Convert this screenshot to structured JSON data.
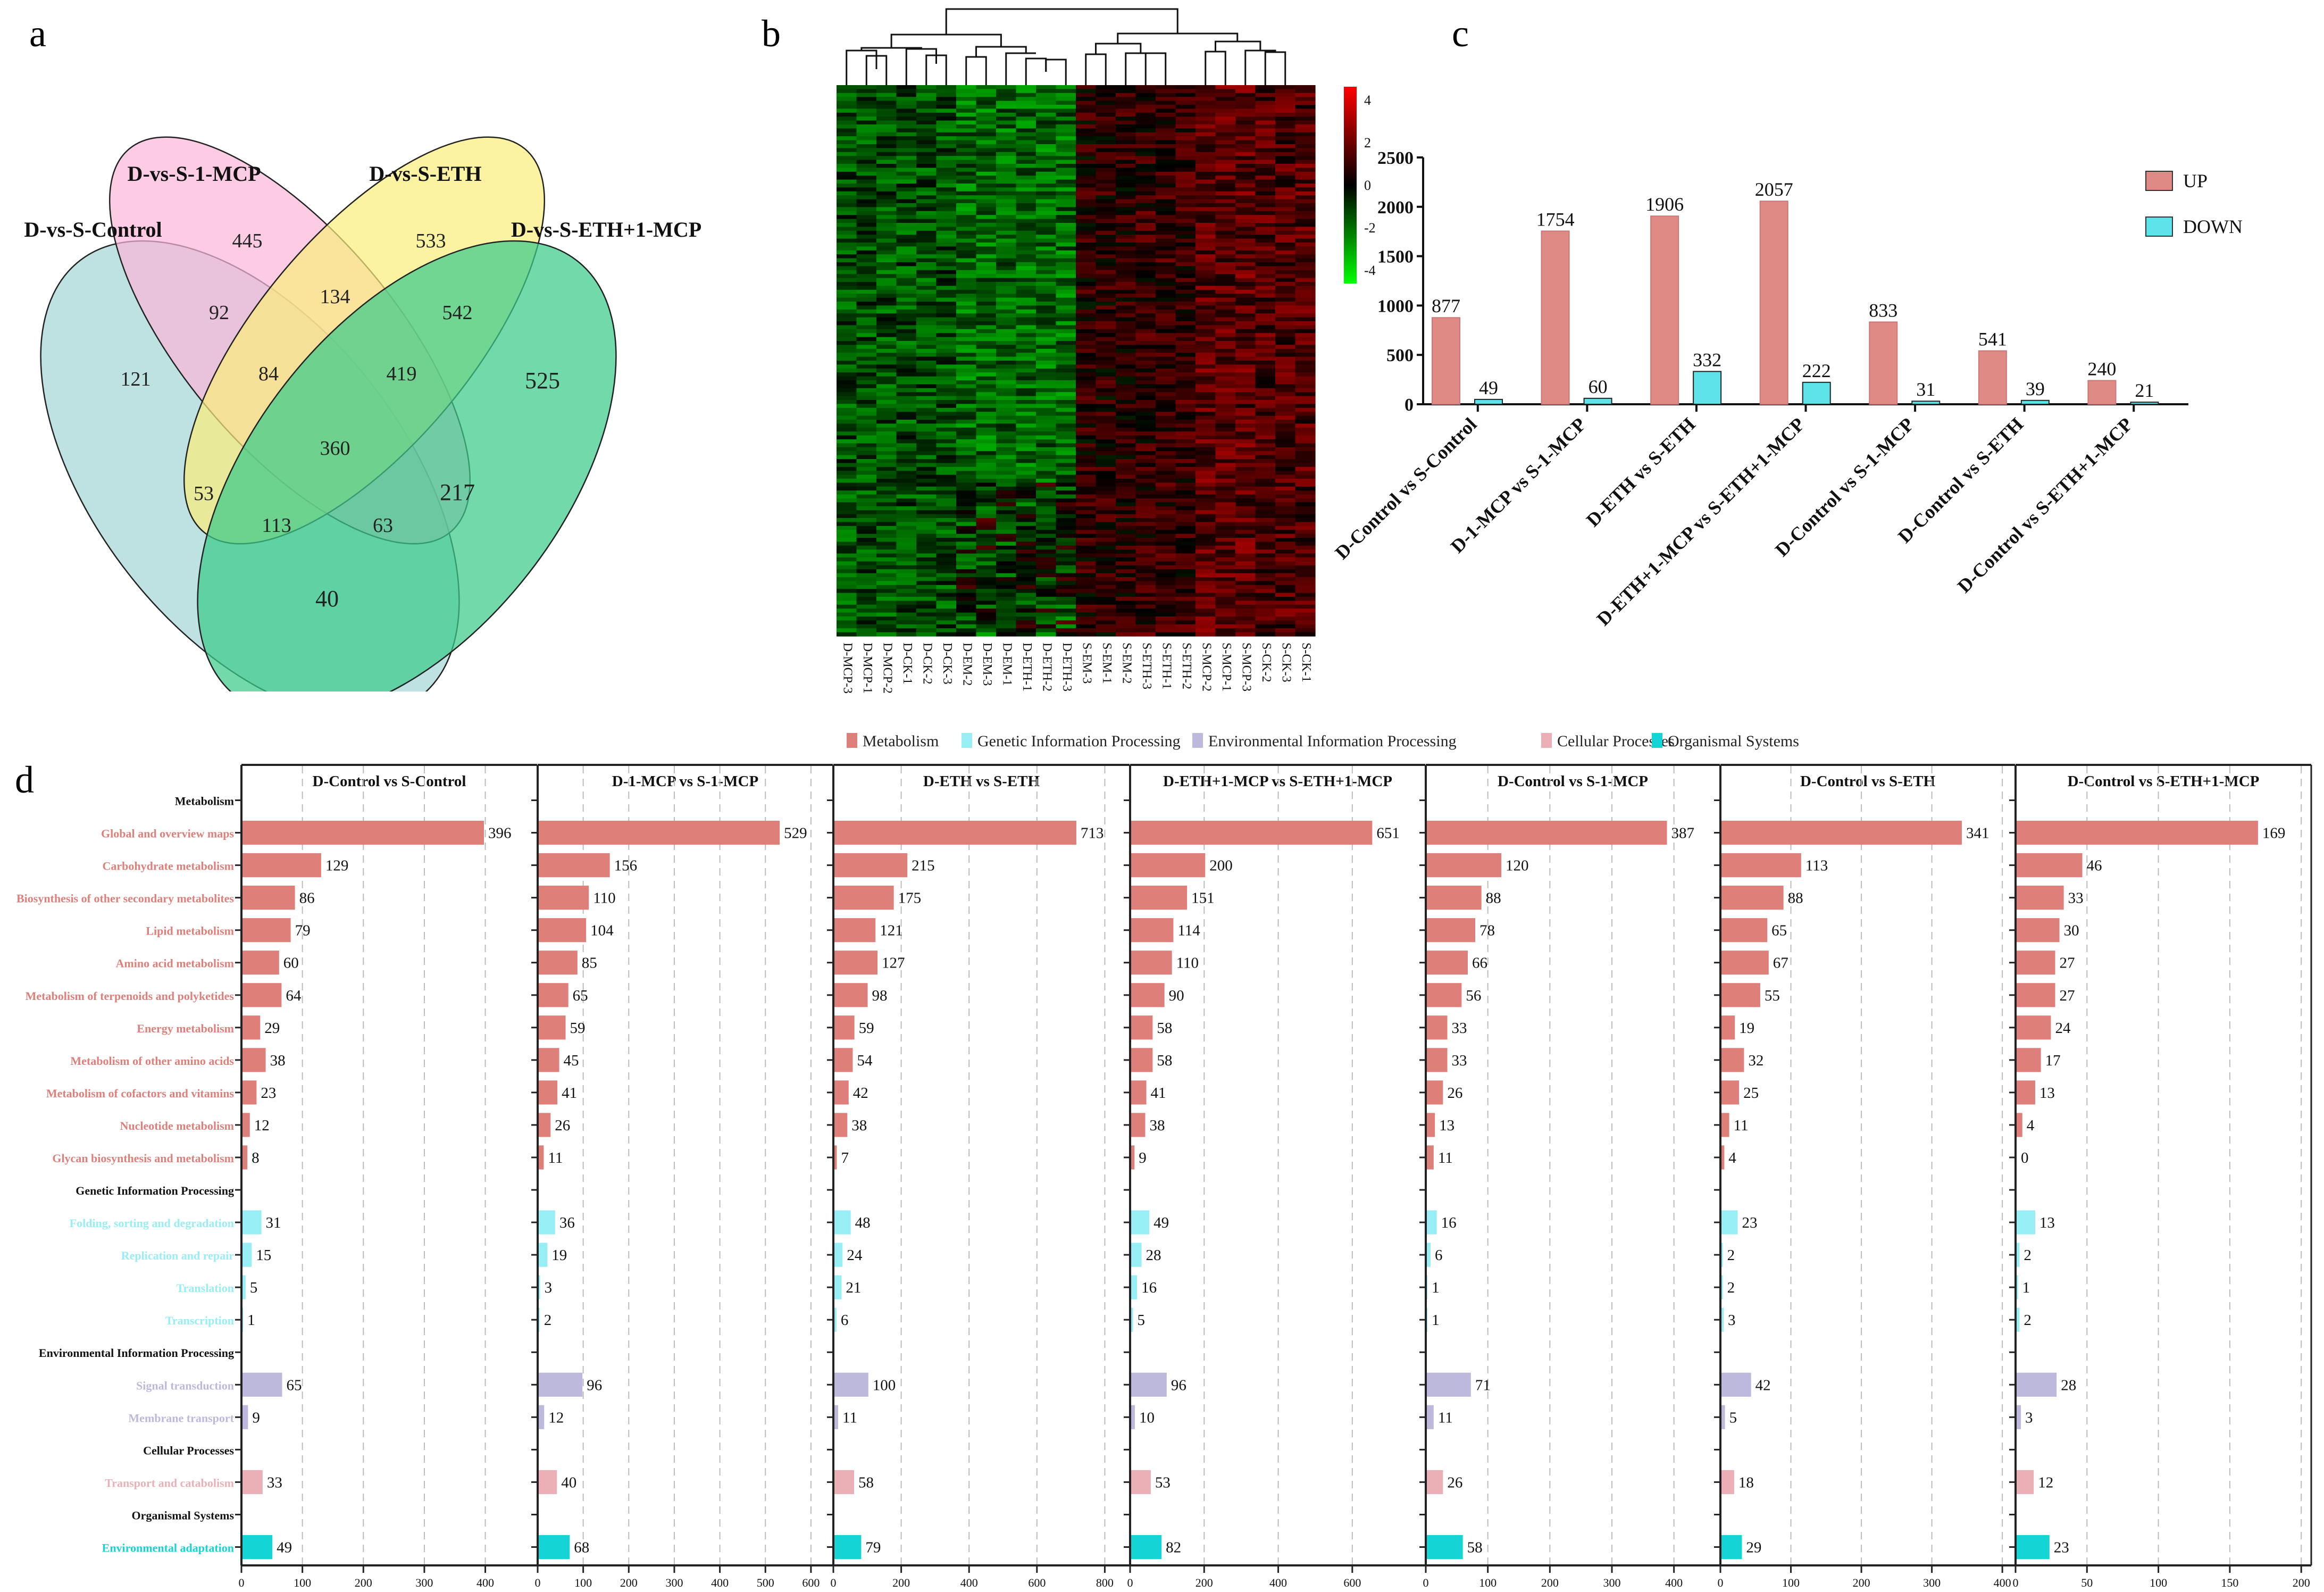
{
  "panel_letters": {
    "a": "a",
    "b": "b",
    "c": "c",
    "d": "d"
  },
  "chart_data": [
    {
      "type": "venn",
      "panel": "a",
      "sets": [
        {
          "name": "D-vs-S-Control",
          "color": "#a8d8d8"
        },
        {
          "name": "D-vs-S-1-MCP",
          "color": "#f9b6d8"
        },
        {
          "name": "D-vs-S-ETH",
          "color": "#f9ec7a"
        },
        {
          "name": "D-vs-S-ETH+1-MCP",
          "color": "#3ccb8a"
        }
      ],
      "regions": [
        {
          "label": "121",
          "sets": [
            "D-vs-S-Control"
          ]
        },
        {
          "label": "445",
          "sets": [
            "D-vs-S-1-MCP"
          ]
        },
        {
          "label": "533",
          "sets": [
            "D-vs-S-ETH"
          ]
        },
        {
          "label": "525",
          "sets": [
            "D-vs-S-ETH+1-MCP"
          ]
        },
        {
          "label": "92",
          "sets": [
            "D-vs-S-Control",
            "D-vs-S-1-MCP"
          ]
        },
        {
          "label": "134",
          "sets": [
            "D-vs-S-1-MCP",
            "D-vs-S-ETH"
          ]
        },
        {
          "label": "542",
          "sets": [
            "D-vs-S-ETH",
            "D-vs-S-ETH+1-MCP"
          ]
        },
        {
          "label": "84",
          "sets": [
            "D-vs-S-Control",
            "D-vs-S-1-MCP",
            "D-vs-S-ETH"
          ]
        },
        {
          "label": "419",
          "sets": [
            "D-vs-S-1-MCP",
            "D-vs-S-ETH",
            "D-vs-S-ETH+1-MCP"
          ]
        },
        {
          "label": "360",
          "sets": [
            "D-vs-S-Control",
            "D-vs-S-1-MCP",
            "D-vs-S-ETH",
            "D-vs-S-ETH+1-MCP"
          ]
        },
        {
          "label": "53",
          "sets": [
            "D-vs-S-Control",
            "D-vs-S-ETH"
          ]
        },
        {
          "label": "217",
          "sets": [
            "D-vs-S-1-MCP",
            "D-vs-S-ETH+1-MCP"
          ]
        },
        {
          "label": "113",
          "sets": [
            "D-vs-S-Control",
            "D-vs-S-ETH",
            "D-vs-S-ETH+1-MCP"
          ]
        },
        {
          "label": "63",
          "sets": [
            "D-vs-S-Control",
            "D-vs-S-1-MCP",
            "D-vs-S-ETH+1-MCP"
          ]
        },
        {
          "label": "40",
          "sets": [
            "D-vs-S-Control",
            "D-vs-S-ETH+1-MCP"
          ]
        }
      ]
    },
    {
      "type": "heatmap",
      "panel": "b",
      "columns": [
        "D-MCP-3",
        "D-MCP-1",
        "D-MCP-2",
        "D-CK-1",
        "D-CK-2",
        "D-CK-3",
        "D-EM-2",
        "D-EM-3",
        "D-EM-1",
        "D-ETH-1",
        "D-ETH-2",
        "D-ETH-3",
        "S-EM-3",
        "S-EM-1",
        "S-EM-2",
        "S-ETH-3",
        "S-ETH-1",
        "S-ETH-2",
        "S-MCP-2",
        "S-MCP-1",
        "S-MCP-3",
        "S-CK-2",
        "S-CK-3",
        "S-CK-1"
      ],
      "colorbar": {
        "ticks": [
          "4",
          "2",
          "0",
          "-2",
          "-4"
        ],
        "range": [
          -4,
          4
        ],
        "high_color": "#ff0000",
        "mid_color": "#000000",
        "low_color": "#00ff00"
      },
      "column_cluster_means": [
        -1.2,
        -1.2,
        -1.2,
        -1.2,
        -1.2,
        -1.2,
        -1.6,
        -1.6,
        -1.6,
        -1.6,
        -1.6,
        -1.6,
        0.6,
        0.6,
        0.6,
        0.8,
        0.8,
        0.8,
        1.4,
        1.4,
        1.4,
        1.2,
        1.2,
        1.2
      ]
    },
    {
      "type": "bar",
      "panel": "c",
      "categories": [
        "D-Control vs S-Control",
        "D-1-MCP vs S-1-MCP",
        "D-ETH vs S-ETH",
        "D-ETH+1-MCP vs S-ETH+1-MCP",
        "D-Control vs S-1-MCP",
        "D-Control vs S-ETH",
        "D-Control vs S-ETH+1-MCP"
      ],
      "series": [
        {
          "name": "UP",
          "color": "#e08a86",
          "values": [
            877,
            1754,
            1906,
            2057,
            833,
            541,
            240
          ]
        },
        {
          "name": "DOWN",
          "color": "#5fe3ea",
          "values": [
            49,
            60,
            332,
            222,
            31,
            39,
            21
          ]
        }
      ],
      "yticks": [
        "0",
        "500",
        "1000",
        "1500",
        "2000",
        "2500"
      ],
      "ylim": [
        0,
        2500
      ],
      "xlabel": "",
      "ylabel": "",
      "legend_position": "top-right"
    },
    {
      "type": "bar",
      "orientation": "horizontal",
      "panel": "d",
      "legend": [
        {
          "name": "Metabolism",
          "color": "#df7f7a"
        },
        {
          "name": "Genetic Information Processing",
          "color": "#97eef4"
        },
        {
          "name": "Environmental Information Processing",
          "color": "#bdb9dc"
        },
        {
          "name": "Cellular Processes",
          "color": "#eab0b5"
        },
        {
          "name": "Organismal Systems",
          "color": "#14d4d6"
        }
      ],
      "categories": [
        {
          "label": "Metabolism",
          "group": "header"
        },
        {
          "label": "Global and overview maps",
          "group": "Metabolism"
        },
        {
          "label": "Carbohydrate metabolism",
          "group": "Metabolism"
        },
        {
          "label": "Biosynthesis of other secondary metabolites",
          "group": "Metabolism"
        },
        {
          "label": "Lipid metabolism",
          "group": "Metabolism"
        },
        {
          "label": "Amino acid metabolism",
          "group": "Metabolism"
        },
        {
          "label": "Metabolism of terpenoids and polyketides",
          "group": "Metabolism"
        },
        {
          "label": "Energy metabolism",
          "group": "Metabolism"
        },
        {
          "label": "Metabolism of other amino acids",
          "group": "Metabolism"
        },
        {
          "label": "Metabolism of cofactors and vitamins",
          "group": "Metabolism"
        },
        {
          "label": "Nucleotide metabolism",
          "group": "Metabolism"
        },
        {
          "label": "Glycan biosynthesis and metabolism",
          "group": "Metabolism"
        },
        {
          "label": "Genetic Information Processing",
          "group": "header"
        },
        {
          "label": "Folding, sorting and degradation",
          "group": "Genetic Information Processing"
        },
        {
          "label": "Replication and repair",
          "group": "Genetic Information Processing"
        },
        {
          "label": "Translation",
          "group": "Genetic Information Processing"
        },
        {
          "label": "Transcription",
          "group": "Genetic Information Processing"
        },
        {
          "label": "Environmental Information Processing",
          "group": "header"
        },
        {
          "label": "Signal transduction",
          "group": "Environmental Information Processing"
        },
        {
          "label": "Membrane transport",
          "group": "Environmental Information Processing"
        },
        {
          "label": "Cellular Processes",
          "group": "header"
        },
        {
          "label": "Transport and catabolism",
          "group": "Cellular Processes"
        },
        {
          "label": "Organismal Systems",
          "group": "header"
        },
        {
          "label": "Environmental adaptation",
          "group": "Organismal Systems"
        }
      ],
      "panels": [
        {
          "title": "D-Control vs S-Control",
          "xlim": [
            0,
            485
          ],
          "xticks": [
            0,
            100,
            200,
            300,
            400
          ],
          "values": [
            null,
            396,
            129,
            86,
            79,
            60,
            64,
            29,
            38,
            23,
            12,
            8,
            null,
            31,
            15,
            5,
            1,
            null,
            65,
            9,
            null,
            33,
            null,
            49
          ]
        },
        {
          "title": "D-1-MCP vs S-1-MCP",
          "xlim": [
            0,
            648
          ],
          "xticks": [
            0,
            100,
            200,
            300,
            400,
            500,
            600
          ],
          "values": [
            null,
            529,
            156,
            110,
            104,
            85,
            65,
            59,
            45,
            41,
            26,
            11,
            null,
            36,
            19,
            3,
            2,
            null,
            96,
            12,
            null,
            40,
            null,
            68
          ]
        },
        {
          "title": "D-ETH vs S-ETH",
          "xlim": [
            0,
            873
          ],
          "xticks": [
            0,
            200,
            400,
            600,
            800
          ],
          "values": [
            null,
            713,
            215,
            175,
            121,
            127,
            98,
            59,
            54,
            42,
            38,
            7,
            null,
            48,
            24,
            21,
            6,
            null,
            100,
            11,
            null,
            58,
            null,
            79
          ]
        },
        {
          "title": "D-ETH+1-MCP vs S-ETH+1-MCP",
          "xlim": [
            0,
            797
          ],
          "xticks": [
            0,
            200,
            400,
            600
          ],
          "values": [
            null,
            651,
            200,
            151,
            114,
            110,
            90,
            58,
            58,
            41,
            38,
            9,
            null,
            49,
            28,
            16,
            5,
            null,
            96,
            10,
            null,
            53,
            null,
            82
          ]
        },
        {
          "title": "D-Control vs S-1-MCP",
          "xlim": [
            0,
            474
          ],
          "xticks": [
            0,
            100,
            200,
            300,
            400
          ],
          "values": [
            null,
            387,
            120,
            88,
            78,
            66,
            56,
            33,
            33,
            26,
            13,
            11,
            null,
            16,
            6,
            1,
            1,
            null,
            71,
            11,
            null,
            26,
            null,
            58
          ]
        },
        {
          "title": "D-Control vs S-ETH",
          "xlim": [
            0,
            418
          ],
          "xticks": [
            0,
            100,
            200,
            300,
            400
          ],
          "values": [
            null,
            341,
            113,
            88,
            65,
            67,
            55,
            19,
            32,
            25,
            11,
            4,
            null,
            23,
            2,
            2,
            3,
            null,
            42,
            5,
            null,
            18,
            null,
            29
          ]
        },
        {
          "title": "D-Control vs S-ETH+1-MCP",
          "xlim": [
            0,
            207
          ],
          "xticks": [
            0,
            50,
            100,
            150,
            200
          ],
          "values": [
            null,
            169,
            46,
            33,
            30,
            27,
            27,
            24,
            17,
            13,
            4,
            0,
            null,
            13,
            2,
            1,
            2,
            null,
            28,
            3,
            null,
            12,
            null,
            23
          ]
        }
      ]
    }
  ]
}
